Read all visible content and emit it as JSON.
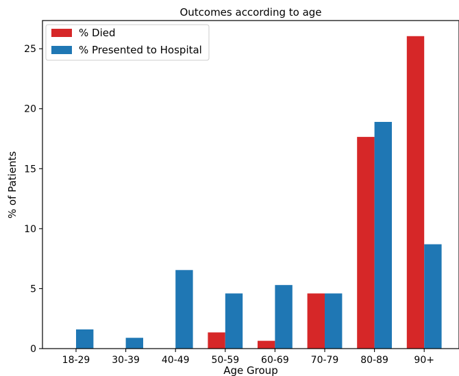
{
  "chart_data": {
    "type": "bar",
    "title": "Outcomes according to age",
    "xlabel": "Age Group",
    "ylabel": "% of Patients",
    "categories": [
      "18-29",
      "30-39",
      "40-49",
      "50-59",
      "60-69",
      "70-79",
      "80-89",
      "90+"
    ],
    "series": [
      {
        "name": "% Died",
        "color": "#d62728",
        "values": [
          0,
          0,
          0,
          1.35,
          0.65,
          4.6,
          17.65,
          26.05
        ]
      },
      {
        "name": "% Presented to Hospital",
        "color": "#1f77b4",
        "values": [
          1.6,
          0.9,
          6.55,
          4.6,
          5.3,
          4.6,
          18.9,
          8.7
        ]
      }
    ],
    "ylim": [
      0,
      27.35
    ],
    "yticks": [
      0,
      5,
      10,
      15,
      20,
      25
    ],
    "grid": false,
    "legend": "top-left"
  }
}
